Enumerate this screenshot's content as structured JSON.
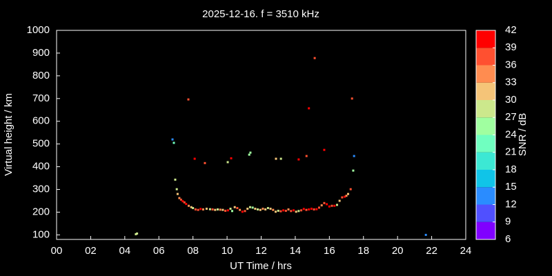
{
  "chart_data": {
    "type": "scatter",
    "title": "2025-12-16. f = 3510 kHz",
    "xlabel": "UT Time / hrs",
    "ylabel": "Virtual height / km",
    "xlim": [
      0,
      24
    ],
    "xticks": [
      {
        "value": 0,
        "label": "00"
      },
      {
        "value": 2,
        "label": "02"
      },
      {
        "value": 4,
        "label": "04"
      },
      {
        "value": 6,
        "label": "06"
      },
      {
        "value": 8,
        "label": "08"
      },
      10,
      12,
      14,
      16,
      18,
      20,
      22,
      24
    ],
    "ylim": [
      80,
      1000
    ],
    "yticks": [
      100,
      200,
      300,
      400,
      500,
      600,
      700,
      800,
      900,
      1000
    ],
    "x": [
      4.65,
      4.72,
      6.8,
      6.88,
      6.96,
      7.05,
      7.1,
      7.2,
      7.3,
      7.4,
      7.5,
      7.6,
      7.75,
      7.9,
      8.0,
      8.15,
      8.3,
      8.45,
      8.6,
      8.8,
      9.0,
      9.15,
      9.3,
      9.45,
      9.6,
      9.75,
      9.9,
      10.05,
      10.2,
      10.3,
      10.45,
      10.6,
      10.75,
      10.9,
      11.05,
      11.2,
      11.35,
      11.5,
      11.65,
      11.8,
      11.95,
      12.1,
      12.25,
      12.4,
      12.55,
      12.7,
      12.85,
      13.0,
      13.15,
      13.3,
      13.45,
      13.6,
      13.75,
      13.9,
      14.05,
      14.2,
      14.35,
      14.5,
      14.65,
      14.8,
      14.95,
      15.1,
      15.25,
      15.4,
      15.55,
      15.7,
      15.85,
      16.0,
      16.15,
      16.3,
      16.45,
      16.6,
      16.75,
      16.9,
      17.0,
      17.1,
      7.73,
      8.1,
      8.7,
      10.04,
      10.24,
      11.3,
      11.37,
      12.87,
      13.16,
      14.2,
      14.66,
      14.8,
      15.14,
      15.7,
      17.33,
      17.45,
      17.4,
      17.25,
      21.66
    ],
    "values": [
      103,
      106,
      520,
      505,
      343,
      301,
      280,
      262,
      255,
      248,
      243,
      236,
      228,
      222,
      218,
      212,
      210,
      214,
      212,
      215,
      213,
      212,
      210,
      212,
      211,
      210,
      206,
      208,
      215,
      205,
      222,
      218,
      210,
      202,
      205,
      215,
      222,
      220,
      215,
      212,
      210,
      215,
      212,
      218,
      215,
      210,
      202,
      206,
      204,
      208,
      206,
      212,
      205,
      208,
      202,
      205,
      208,
      214,
      210,
      212,
      215,
      212,
      213,
      220,
      230,
      240,
      235,
      225,
      228,
      228,
      232,
      250,
      265,
      268,
      272,
      280,
      696,
      435,
      416,
      420,
      437,
      453,
      462,
      435,
      435,
      432,
      447,
      657,
      878,
      474,
      700,
      447,
      383,
      301,
      100
    ],
    "snr": [
      28,
      28,
      13,
      22,
      28,
      28,
      31,
      34,
      37,
      40,
      37,
      40,
      34,
      31,
      28,
      37,
      37,
      40,
      34,
      31,
      28,
      37,
      31,
      28,
      34,
      31,
      37,
      40,
      28,
      25,
      31,
      37,
      34,
      40,
      37,
      31,
      28,
      25,
      31,
      28,
      31,
      34,
      31,
      28,
      31,
      34,
      31,
      28,
      37,
      40,
      37,
      34,
      37,
      40,
      31,
      28,
      37,
      40,
      37,
      40,
      40,
      37,
      40,
      37,
      34,
      37,
      40,
      40,
      37,
      40,
      28,
      31,
      37,
      40,
      34,
      31,
      37,
      40,
      37,
      28,
      40,
      25,
      25,
      31,
      28,
      40,
      37,
      40,
      37,
      40,
      37,
      13,
      25,
      37,
      13
    ],
    "colorbar": {
      "label": "SNR / dB",
      "lim": [
        6,
        42
      ],
      "ticks": [
        6,
        9,
        12,
        15,
        18,
        21,
        24,
        27,
        30,
        33,
        36,
        39,
        42
      ],
      "colors": [
        "#8000ff",
        "#5050ff",
        "#2a8cff",
        "#10c4e8",
        "#3ce8d4",
        "#70ffc0",
        "#a0ffa0",
        "#cce88c",
        "#f5c478",
        "#ff8c50",
        "#ff5030",
        "#ff0000"
      ]
    }
  }
}
